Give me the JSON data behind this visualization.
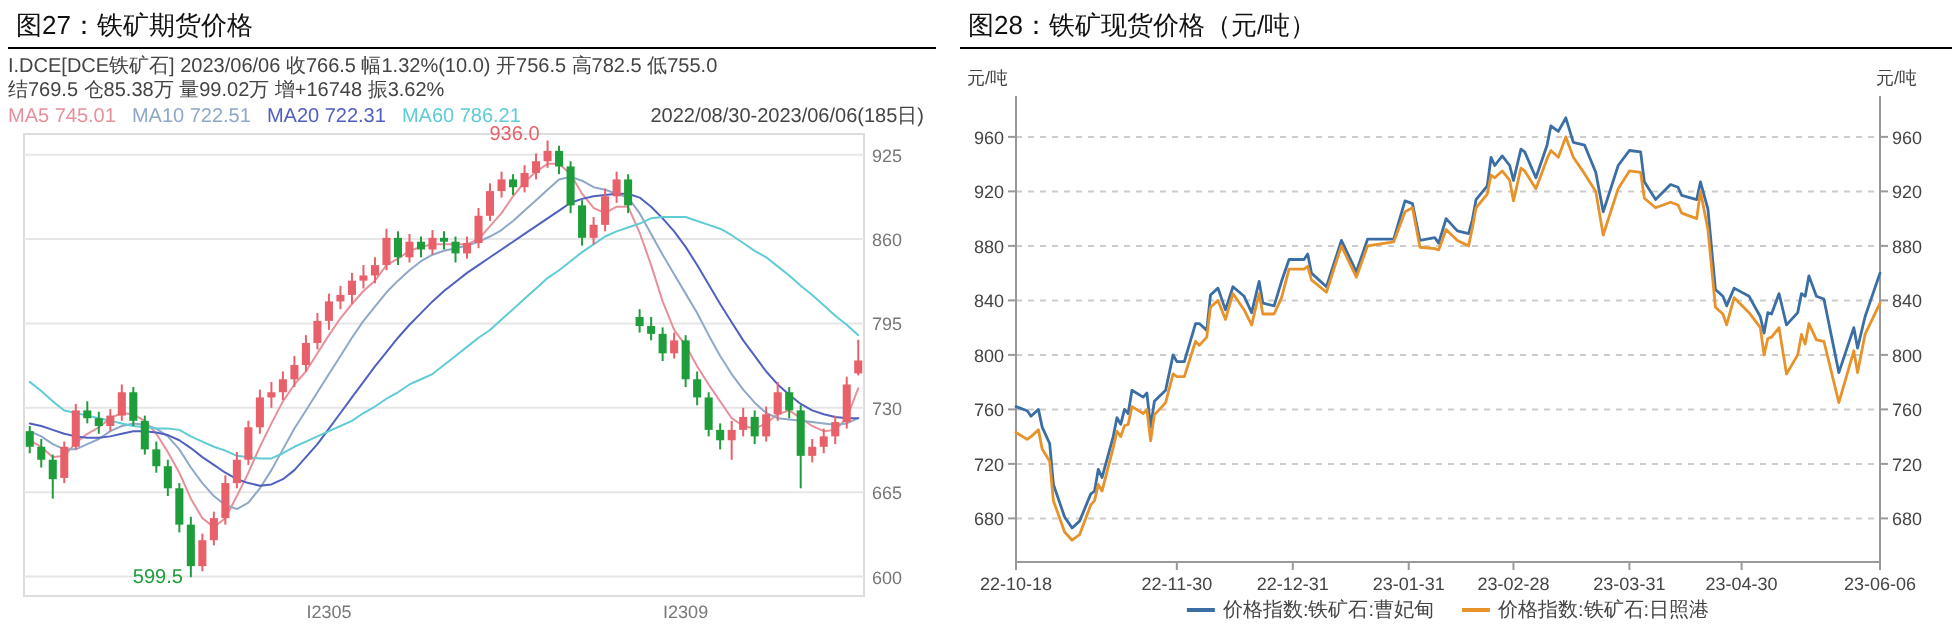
{
  "chart_data": [
    {
      "type": "candlestick",
      "title": "图27：铁矿期货价格",
      "annotations": [
        "I.DCE[DCE铁矿石] 2023/06/06 收766.5 幅1.32%(10.0) 开756.5 高782.5 低755.0",
        "结769.5 仓85.38万 量99.02万 增+16748 振3.62%",
        "2022/08/30-2023/06/06(185日)",
        "936.0",
        "599.5"
      ],
      "categories": [
        null,
        null,
        null,
        null,
        null,
        null,
        null,
        null,
        null,
        null,
        null,
        null,
        null,
        null,
        null,
        null,
        null,
        null,
        null,
        null,
        null,
        null,
        null,
        null,
        null,
        null,
        "I2305",
        null,
        null,
        null,
        null,
        null,
        null,
        null,
        null,
        null,
        null,
        null,
        null,
        null,
        null,
        null,
        null,
        null,
        null,
        null,
        null,
        null,
        null,
        null,
        null,
        null,
        null,
        null,
        null,
        null,
        null,
        "I2309",
        null,
        null,
        null,
        null,
        null,
        null,
        null,
        null,
        null,
        null,
        null,
        null,
        null,
        null,
        null
      ],
      "ohlc": [
        [
          712,
          716,
          695,
          700
        ],
        [
          700,
          706,
          684,
          690
        ],
        [
          690,
          694,
          660,
          675
        ],
        [
          676,
          704,
          672,
          700
        ],
        [
          700,
          733,
          698,
          728
        ],
        [
          728,
          735,
          718,
          722
        ],
        [
          722,
          727,
          710,
          716
        ],
        [
          716,
          729,
          712,
          724
        ],
        [
          724,
          748,
          720,
          742
        ],
        [
          742,
          746,
          716,
          720
        ],
        [
          720,
          724,
          694,
          698
        ],
        [
          698,
          704,
          680,
          685
        ],
        [
          685,
          690,
          662,
          668
        ],
        [
          668,
          672,
          634,
          640
        ],
        [
          640,
          646,
          599.5,
          608
        ],
        [
          608,
          633,
          604,
          628
        ],
        [
          628,
          650,
          624,
          645
        ],
        [
          645,
          678,
          640,
          672
        ],
        [
          672,
          696,
          668,
          690
        ],
        [
          690,
          720,
          686,
          715
        ],
        [
          715,
          744,
          710,
          738
        ],
        [
          738,
          750,
          730,
          742
        ],
        [
          742,
          758,
          736,
          752
        ],
        [
          752,
          770,
          746,
          763
        ],
        [
          763,
          786,
          758,
          780
        ],
        [
          780,
          803,
          775,
          797
        ],
        [
          797,
          818,
          790,
          812
        ],
        [
          812,
          824,
          806,
          817
        ],
        [
          817,
          834,
          810,
          828
        ],
        [
          828,
          840,
          822,
          832
        ],
        [
          832,
          846,
          826,
          840
        ],
        [
          840,
          868,
          836,
          861
        ],
        [
          861,
          866,
          840,
          846
        ],
        [
          846,
          864,
          842,
          858
        ],
        [
          858,
          862,
          846,
          852
        ],
        [
          852,
          867,
          848,
          861
        ],
        [
          861,
          866,
          852,
          858
        ],
        [
          858,
          862,
          842,
          849
        ],
        [
          849,
          862,
          845,
          857
        ],
        [
          857,
          884,
          853,
          878
        ],
        [
          878,
          903,
          874,
          897
        ],
        [
          897,
          912,
          892,
          906
        ],
        [
          906,
          910,
          894,
          900
        ],
        [
          900,
          917,
          896,
          911
        ],
        [
          911,
          926,
          906,
          920
        ],
        [
          920,
          936,
          915,
          928
        ],
        [
          928,
          932,
          910,
          916
        ],
        [
          916,
          920,
          880,
          886
        ],
        [
          886,
          890,
          855,
          861
        ],
        [
          861,
          877,
          856,
          871
        ],
        [
          871,
          899,
          866,
          893
        ],
        [
          893,
          912,
          888,
          906
        ],
        [
          906,
          910,
          880,
          886
        ],
        [
          800,
          806,
          788,
          793
        ],
        [
          793,
          800,
          782,
          787
        ],
        [
          787,
          792,
          766,
          772
        ],
        [
          772,
          788,
          768,
          782
        ],
        [
          782,
          786,
          746,
          752
        ],
        [
          752,
          758,
          732,
          738
        ],
        [
          738,
          742,
          708,
          713
        ],
        [
          713,
          718,
          698,
          705
        ],
        [
          705,
          720,
          690,
          713
        ],
        [
          713,
          730,
          708,
          723
        ],
        [
          723,
          728,
          702,
          708
        ],
        [
          708,
          731,
          704,
          725
        ],
        [
          725,
          750,
          720,
          742
        ],
        [
          742,
          746,
          722,
          728
        ],
        [
          728,
          732,
          668,
          693
        ],
        [
          693,
          706,
          688,
          700
        ],
        [
          700,
          714,
          695,
          708
        ],
        [
          708,
          724,
          702,
          719
        ],
        [
          719,
          754,
          714,
          748
        ],
        [
          756.5,
          782.5,
          755,
          766.5
        ]
      ],
      "colors": [
        "#1e9e3a",
        "#1e9e3a",
        "#1e9e3a",
        "#e8606a",
        "#e8606a",
        "#1e9e3a",
        "#1e9e3a",
        "#e8606a",
        "#e8606a",
        "#1e9e3a",
        "#1e9e3a",
        "#1e9e3a",
        "#1e9e3a",
        "#1e9e3a",
        "#1e9e3a",
        "#e8606a",
        "#e8606a",
        "#e8606a",
        "#e8606a",
        "#e8606a",
        "#e8606a",
        "#e8606a",
        "#e8606a",
        "#e8606a",
        "#e8606a",
        "#e8606a",
        "#e8606a",
        "#e8606a",
        "#e8606a",
        "#e8606a",
        "#e8606a",
        "#e8606a",
        "#1e9e3a",
        "#e8606a",
        "#1e9e3a",
        "#e8606a",
        "#1e9e3a",
        "#1e9e3a",
        "#e8606a",
        "#e8606a",
        "#e8606a",
        "#e8606a",
        "#1e9e3a",
        "#e8606a",
        "#e8606a",
        "#e8606a",
        "#1e9e3a",
        "#1e9e3a",
        "#1e9e3a",
        "#e8606a",
        "#e8606a",
        "#e8606a",
        "#1e9e3a",
        "#1e9e3a",
        "#1e9e3a",
        "#1e9e3a",
        "#e8606a",
        "#1e9e3a",
        "#1e9e3a",
        "#1e9e3a",
        "#1e9e3a",
        "#e8606a",
        "#e8606a",
        "#1e9e3a",
        "#e8606a",
        "#e8606a",
        "#1e9e3a",
        "#1e9e3a",
        "#e8606a",
        "#e8606a",
        "#e8606a",
        "#e8606a",
        "#e8606a"
      ],
      "series": [
        {
          "type": "line",
          "name": "MA5 745.01",
          "color": "#e8909a",
          "values": [
            705,
            700,
            692,
            693,
            703,
            710,
            715,
            722,
            726,
            725,
            720,
            710,
            696,
            680,
            660,
            645,
            638,
            645,
            662,
            680,
            700,
            718,
            735,
            748,
            758,
            772,
            786,
            799,
            810,
            820,
            828,
            840,
            845,
            851,
            854,
            856,
            856,
            856,
            856,
            860,
            870,
            880,
            893,
            904,
            912,
            918,
            918,
            910,
            895,
            884,
            880,
            885,
            885,
            865,
            840,
            812,
            790,
            778,
            762,
            748,
            735,
            722,
            716,
            714,
            718,
            725,
            728,
            722,
            716,
            712,
            713,
            722,
            745
          ]
        },
        {
          "type": "line",
          "name": "MA10 722.51",
          "color": "#8fa8c8",
          "values": [
            712,
            708,
            702,
            698,
            698,
            702,
            706,
            712,
            716,
            718,
            717,
            714,
            708,
            698,
            684,
            672,
            662,
            655,
            652,
            657,
            668,
            682,
            698,
            714,
            728,
            742,
            756,
            770,
            784,
            797,
            808,
            819,
            828,
            836,
            843,
            848,
            851,
            853,
            855,
            858,
            862,
            867,
            874,
            882,
            890,
            898,
            906,
            908,
            905,
            900,
            898,
            895,
            892,
            880,
            864,
            848,
            833,
            818,
            803,
            786,
            770,
            756,
            744,
            734,
            726,
            722,
            721,
            720,
            719,
            718,
            717,
            718,
            722
          ]
        },
        {
          "type": "line",
          "name": "MA20 722.31",
          "color": "#5060c0",
          "values": [
            718,
            716,
            713,
            710,
            708,
            707,
            707,
            708,
            710,
            712,
            712,
            711,
            709,
            705,
            699,
            692,
            686,
            680,
            675,
            672,
            670,
            671,
            675,
            682,
            692,
            702,
            714,
            726,
            738,
            750,
            762,
            773,
            784,
            794,
            803,
            812,
            820,
            827,
            834,
            840,
            846,
            852,
            858,
            864,
            870,
            876,
            882,
            888,
            891,
            893,
            894,
            895,
            895,
            892,
            885,
            876,
            866,
            854,
            840,
            825,
            810,
            796,
            782,
            770,
            758,
            748,
            740,
            733,
            728,
            725,
            723,
            722,
            722
          ]
        },
        {
          "type": "line",
          "name": "MA60 786.21",
          "color": "#60ccd6",
          "values": [
            750,
            743,
            735,
            728,
            726,
            724,
            722,
            720,
            718,
            716,
            715,
            714,
            714,
            713,
            708,
            704,
            700,
            697,
            693,
            692,
            691,
            691,
            695,
            700,
            704,
            708,
            712,
            716,
            720,
            726,
            731,
            737,
            742,
            748,
            752,
            756,
            763,
            770,
            777,
            784,
            790,
            798,
            806,
            814,
            822,
            830,
            836,
            843,
            850,
            856,
            862,
            866,
            869,
            872,
            876,
            877,
            877,
            877,
            874,
            871,
            868,
            863,
            857,
            851,
            846,
            839,
            832,
            824,
            817,
            809,
            801,
            794,
            786
          ]
        }
      ],
      "ylim": [
        585,
        941
      ],
      "yticks": [
        600,
        665,
        730,
        795,
        860,
        925
      ],
      "grid": "y",
      "legend": "top"
    },
    {
      "type": "line",
      "title": "图28：铁矿现货价格（元/吨）",
      "ylabel": "元/吨",
      "y2label": "元/吨",
      "x": [
        "2022-10-18",
        "2022-10-21",
        "2022-10-22",
        "2022-10-24",
        "2022-10-25",
        "2022-10-27",
        "2022-10-28",
        "2022-10-31",
        "2022-11-02",
        "2022-11-04",
        "2022-11-07",
        "2022-11-08",
        "2022-11-09",
        "2022-11-10",
        "2022-11-13",
        "2022-11-14",
        "2022-11-15",
        "2022-11-16",
        "2022-11-17",
        "2022-11-18",
        "2022-11-21",
        "2022-11-22",
        "2022-11-23",
        "2022-11-24",
        "2022-11-27",
        "2022-11-29",
        "2022-11-30",
        "2022-12-02",
        "2022-12-05",
        "2022-12-06",
        "2022-12-08",
        "2022-12-09",
        "2022-12-11",
        "2022-12-13",
        "2022-12-15",
        "2022-12-18",
        "2022-12-20",
        "2022-12-22",
        "2022-12-23",
        "2022-12-26",
        "2022-12-28",
        "2022-12-30",
        "2023-01-03",
        "2023-01-04",
        "2023-01-05",
        "2023-01-09",
        "2023-01-13",
        "2023-01-17",
        "2023-01-20",
        "2023-01-27",
        "2023-01-30",
        "2023-02-01",
        "2023-02-03",
        "2023-02-07",
        "2023-02-08",
        "2023-02-10",
        "2023-02-13",
        "2023-02-16",
        "2023-02-17",
        "2023-02-18",
        "2023-02-21",
        "2023-02-22",
        "2023-02-23",
        "2023-02-25",
        "2023-02-27",
        "2023-02-28",
        "2023-03-02",
        "2023-03-03",
        "2023-03-06",
        "2023-03-09",
        "2023-03-10",
        "2023-03-12",
        "2023-03-14",
        "2023-03-16",
        "2023-03-19",
        "2023-03-22",
        "2023-03-24",
        "2023-03-28",
        "2023-03-31",
        "2023-04-03",
        "2023-04-04",
        "2023-04-07",
        "2023-04-11",
        "2023-04-13",
        "2023-04-14",
        "2023-04-18",
        "2023-04-19",
        "2023-04-21",
        "2023-04-23",
        "2023-04-25",
        "2023-04-26",
        "2023-04-28",
        "2023-05-02",
        "2023-05-05",
        "2023-05-06",
        "2023-05-07",
        "2023-05-08",
        "2023-05-10",
        "2023-05-12",
        "2023-05-15",
        "2023-05-16",
        "2023-05-17",
        "2023-05-18",
        "2023-05-20",
        "2023-05-22",
        "2023-05-26",
        "2023-05-30",
        "2023-05-31",
        "2023-06-02",
        "2023-06-06"
      ],
      "series": [
        {
          "name": "价格指数:铁矿石:曹妃甸",
          "color": "#3a6ea5",
          "values": [
            762,
            759,
            755,
            760,
            747,
            735,
            705,
            681,
            673,
            678,
            698,
            700,
            716,
            710,
            740,
            754,
            749,
            760,
            757,
            774,
            769,
            772,
            747,
            766,
            774,
            800,
            795,
            795,
            823,
            823,
            818,
            844,
            849,
            833,
            850,
            843,
            831,
            854,
            838,
            836,
            854,
            870,
            870,
            874,
            860,
            850,
            884,
            861,
            885,
            885,
            913,
            911,
            884,
            886,
            882,
            900,
            891,
            889,
            899,
            914,
            924,
            945,
            939,
            946,
            939,
            928,
            951,
            949,
            930,
            954,
            968,
            964,
            974,
            956,
            954,
            934,
            905,
            939,
            950,
            949,
            927,
            914,
            925,
            923,
            917,
            914,
            927,
            907,
            848,
            843,
            836,
            849,
            843,
            828,
            816,
            831,
            830,
            845,
            822,
            831,
            845,
            843,
            858,
            843,
            841,
            787,
            820,
            805,
            828,
            860
          ]
        },
        {
          "name": "价格指数:铁矿石:日照港",
          "color": "#e8922a",
          "values": [
            743,
            738,
            740,
            745,
            731,
            722,
            693,
            670,
            664,
            668,
            690,
            693,
            705,
            700,
            732,
            744,
            740,
            748,
            749,
            762,
            757,
            760,
            737,
            756,
            765,
            786,
            784,
            784,
            810,
            807,
            813,
            835,
            840,
            826,
            845,
            833,
            822,
            845,
            830,
            830,
            842,
            863,
            863,
            865,
            855,
            846,
            880,
            857,
            880,
            883,
            905,
            908,
            879,
            878,
            877,
            892,
            884,
            880,
            893,
            908,
            918,
            932,
            930,
            935,
            928,
            913,
            937,
            935,
            922,
            944,
            950,
            945,
            960,
            945,
            933,
            920,
            888,
            922,
            935,
            934,
            915,
            908,
            912,
            910,
            904,
            900,
            920,
            892,
            835,
            830,
            822,
            842,
            831,
            820,
            800,
            812,
            813,
            820,
            786,
            800,
            815,
            808,
            823,
            811,
            810,
            765,
            803,
            787,
            815,
            838
          ]
        }
      ],
      "xlim": [
        "2022-10-18",
        "2023-06-06"
      ],
      "xticks": [
        {
          "value": "2022-10-18",
          "label": "22-10-18"
        },
        {
          "value": "2022-11-30",
          "label": "22-11-30"
        },
        {
          "value": "2022-12-31",
          "label": "22-12-31"
        },
        {
          "value": "2023-01-31",
          "label": "23-01-31"
        },
        {
          "value": "2023-02-28",
          "label": "23-02-28"
        },
        {
          "value": "2023-03-31",
          "label": "23-03-31"
        },
        {
          "value": "2023-04-30",
          "label": "23-04-30"
        },
        {
          "value": "2023-06-06",
          "label": "23-06-06"
        }
      ],
      "ylim": [
        648,
        990
      ],
      "yticks": [
        680,
        720,
        760,
        800,
        840,
        880,
        920,
        960
      ],
      "y2lim": [
        648,
        990
      ],
      "y2ticks": [
        680,
        720,
        760,
        800,
        840,
        880,
        920,
        960
      ],
      "grid": "y",
      "legend": "bottom"
    }
  ]
}
